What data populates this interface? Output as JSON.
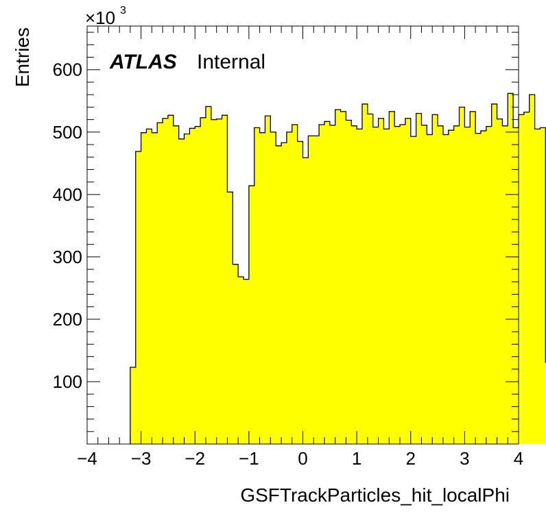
{
  "chart_data": {
    "type": "histogram",
    "xlabel": "GSFTrackParticles_hit_localPhi",
    "ylabel": "Entries",
    "y_multiplier": {
      "base": "×10",
      "exponent": "3"
    },
    "label": {
      "experiment": "ATLAS",
      "status": "Internal"
    },
    "xlim": [
      -4,
      4
    ],
    "ylim": [
      0,
      670
    ],
    "x_ticks": [
      "−4",
      "−3",
      "−2",
      "−1",
      "0",
      "1",
      "2",
      "3",
      "4"
    ],
    "y_ticks": [
      "100",
      "200",
      "300",
      "400",
      "500",
      "600"
    ],
    "fill_color": "#ffff00",
    "line_color": "#000000",
    "bin_low": -3.2,
    "bin_width": 0.1,
    "values": [
      123,
      469,
      499,
      505,
      499,
      515,
      522,
      527,
      510,
      489,
      497,
      506,
      509,
      523,
      541,
      520,
      521,
      527,
      404,
      288,
      268,
      264,
      414,
      507,
      499,
      526,
      500,
      478,
      483,
      500,
      512,
      485,
      459,
      494,
      494,
      512,
      517,
      511,
      536,
      533,
      519,
      510,
      505,
      545,
      529,
      508,
      522,
      505,
      533,
      509,
      512,
      522,
      493,
      530,
      511,
      496,
      528,
      510,
      496,
      503,
      510,
      540,
      508,
      533,
      498,
      502,
      509,
      545,
      521,
      510,
      562,
      507,
      528,
      532,
      560,
      505,
      507,
      131
    ]
  }
}
